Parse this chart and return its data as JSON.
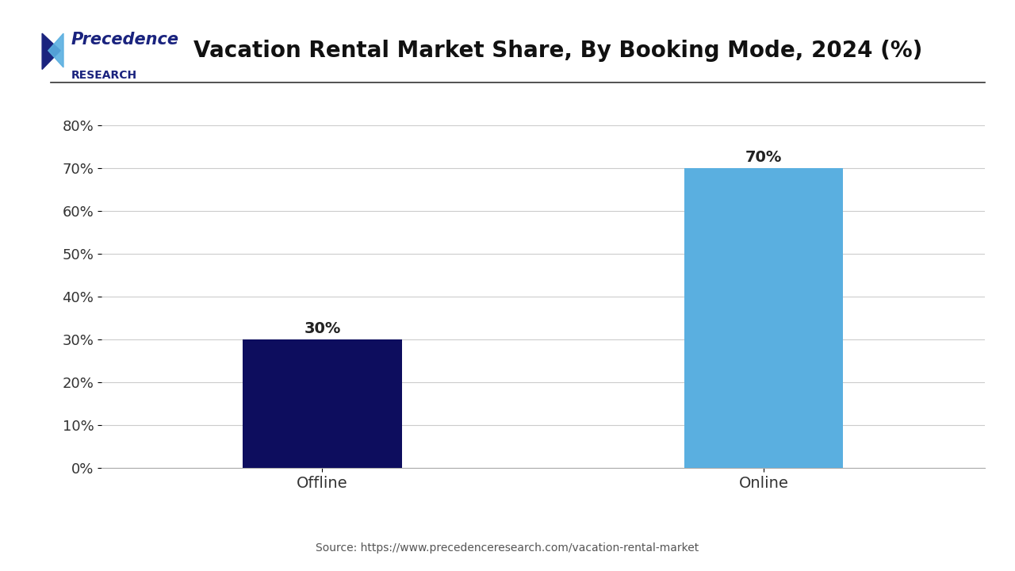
{
  "title": "Vacation Rental Market Share, By Booking Mode, 2024 (%)",
  "categories": [
    "Offline",
    "Online"
  ],
  "values": [
    30,
    70
  ],
  "bar_colors": [
    "#0d0d5e",
    "#5aafe0"
  ],
  "bar_labels": [
    "30%",
    "70%"
  ],
  "ylim": [
    0,
    80
  ],
  "yticks": [
    0,
    10,
    20,
    30,
    40,
    50,
    60,
    70,
    80
  ],
  "ytick_labels": [
    "0%",
    "10%",
    "20%",
    "30%",
    "40%",
    "50%",
    "60%",
    "70%",
    "80%"
  ],
  "source_text": "Source: https://www.precedenceresearch.com/vacation-rental-market",
  "title_fontsize": 20,
  "tick_fontsize": 13,
  "label_fontsize": 14,
  "bar_label_fontsize": 14,
  "background_color": "#ffffff",
  "grid_color": "#cccccc",
  "logo_text_line1": "Precedence",
  "logo_text_line2": "RESEARCH",
  "logo_color": "#1a237e",
  "top_line_color": "#333333"
}
